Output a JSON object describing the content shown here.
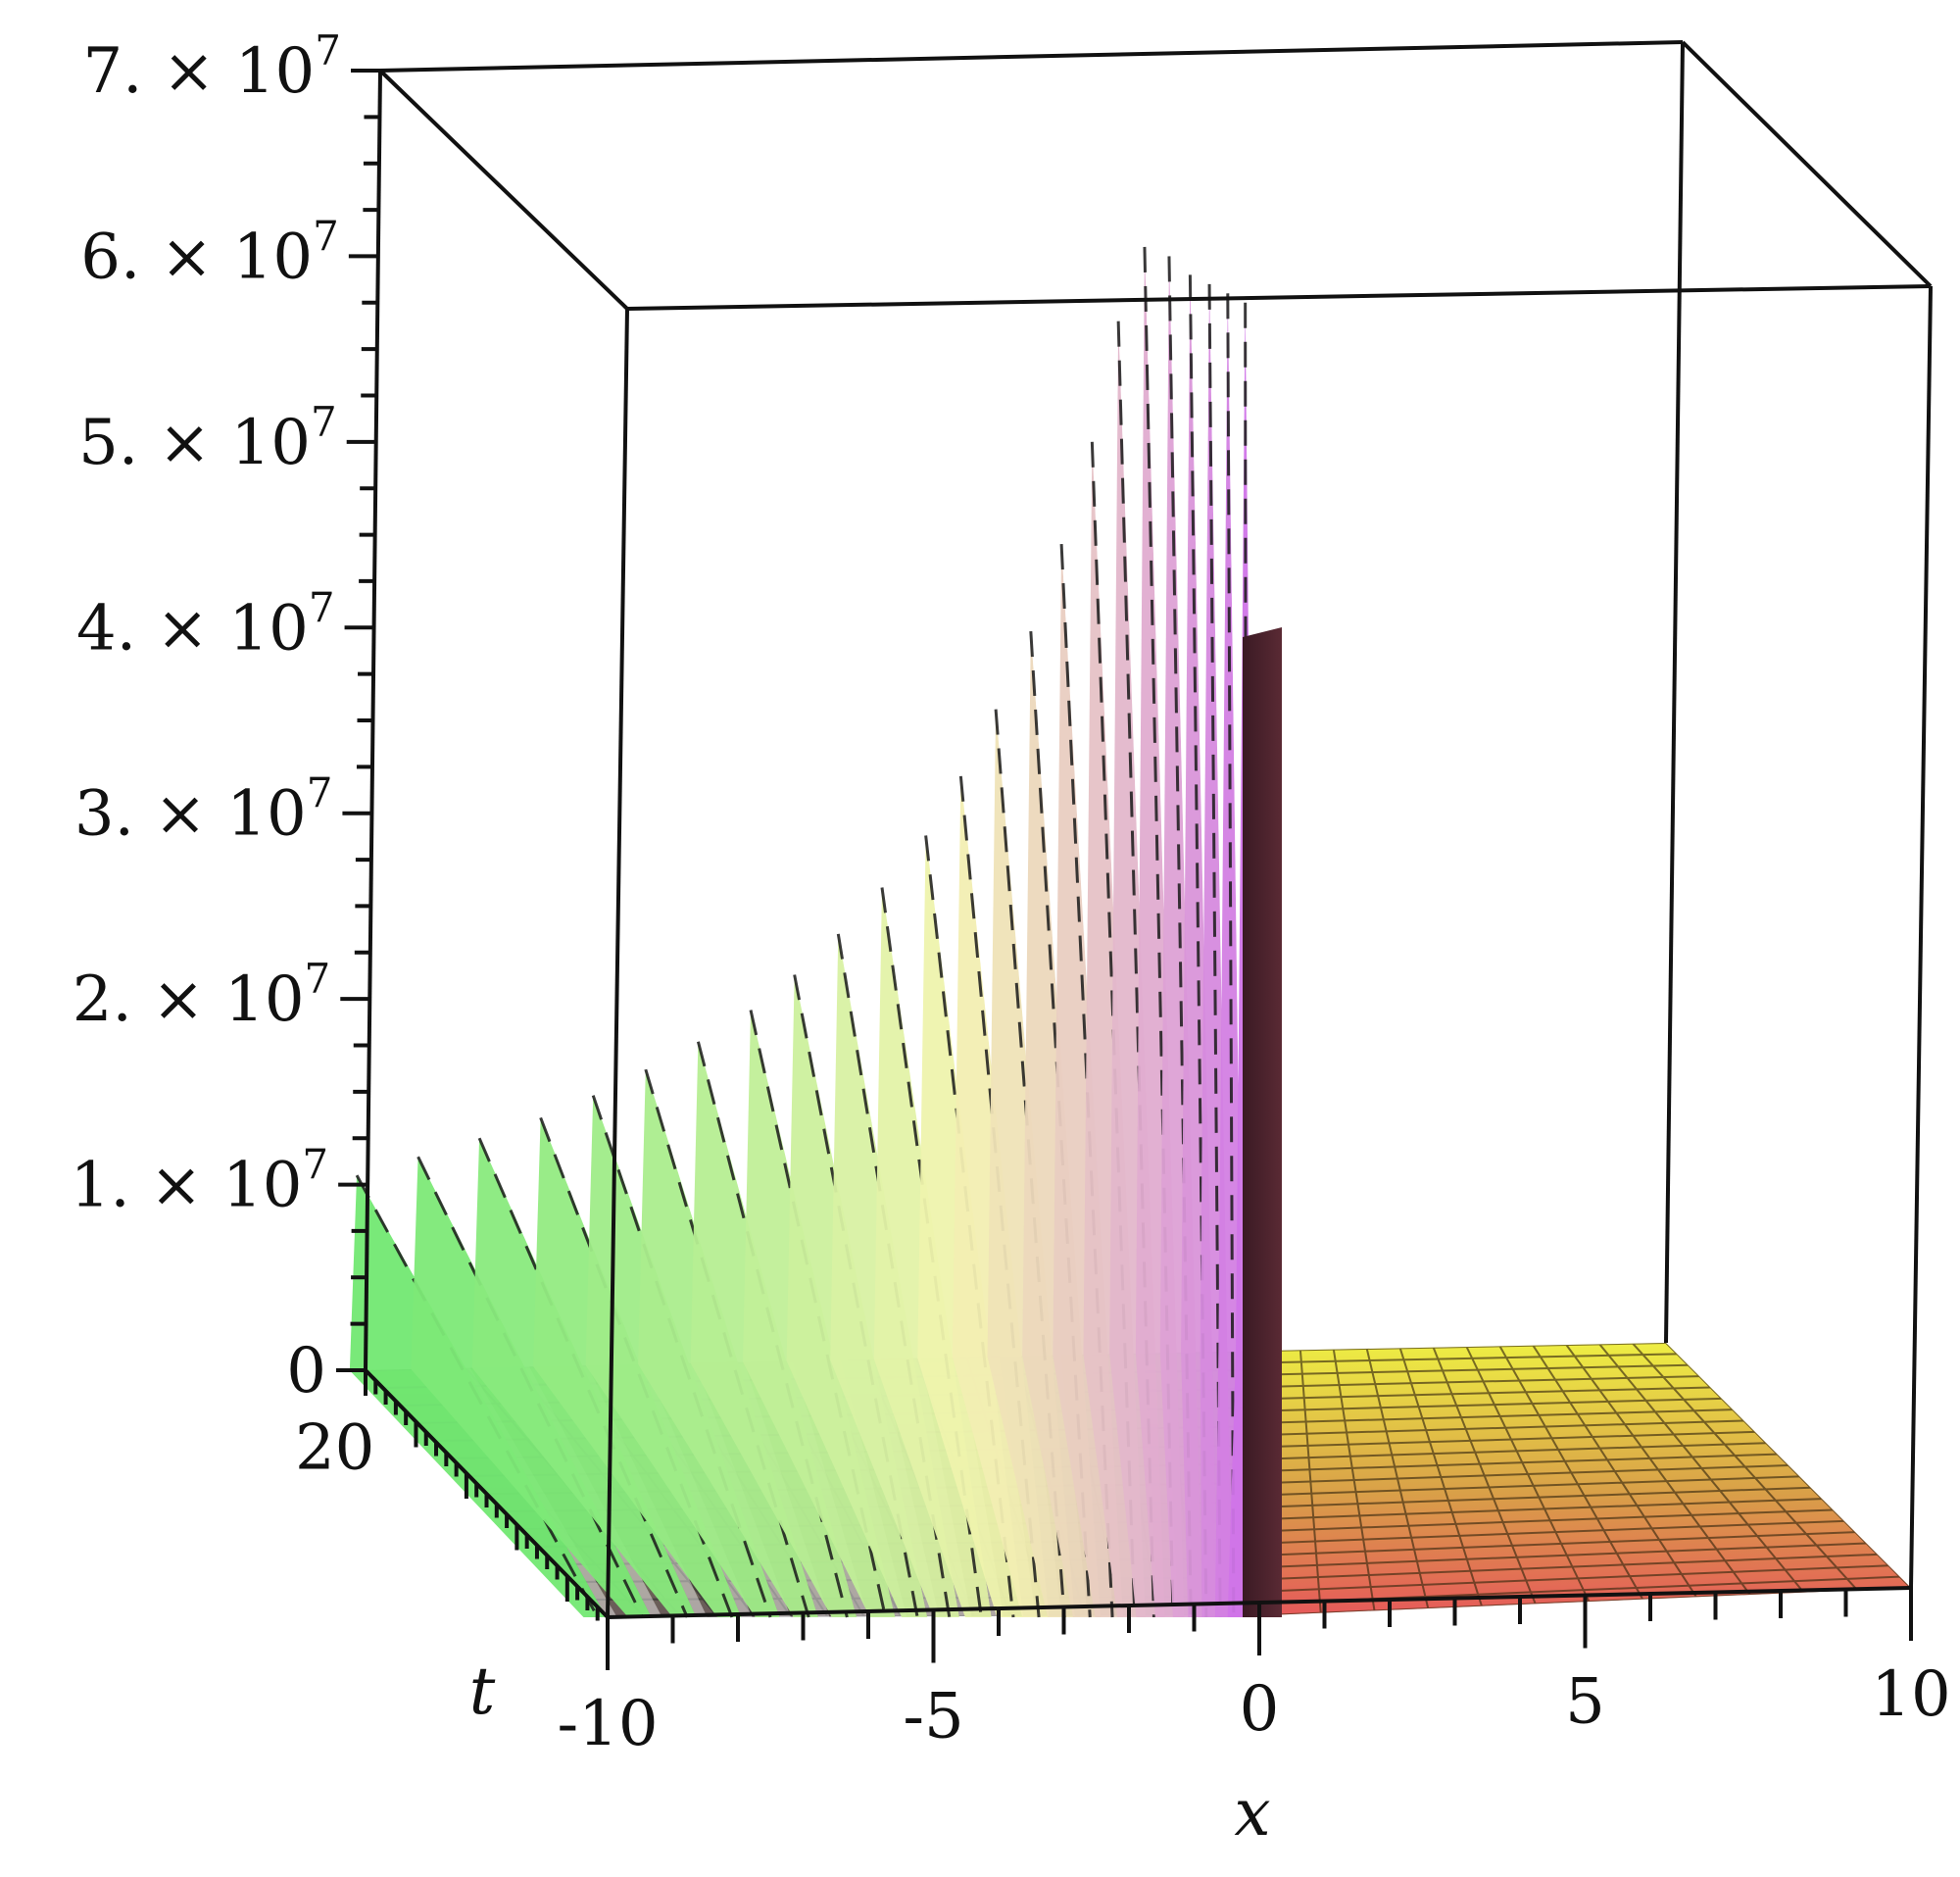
{
  "chart_data": {
    "type": "surface3d",
    "title": "",
    "xlabel": "x",
    "ylabel": "t",
    "zlabel": "",
    "x_ticks": [
      {
        "value": -10,
        "label": "-10"
      },
      {
        "value": -5,
        "label": "-5"
      },
      {
        "value": 0,
        "label": "0"
      },
      {
        "value": 5,
        "label": "5"
      },
      {
        "value": 10,
        "label": "10"
      }
    ],
    "t_ticks": [
      {
        "value": 20,
        "label": "20"
      }
    ],
    "z_ticks": [
      {
        "value": 0,
        "label": "0",
        "mantissa": "0",
        "exponent": ""
      },
      {
        "value": 10000000,
        "label": "1. × 10^7",
        "mantissa": "1. × 10",
        "exponent": "7"
      },
      {
        "value": 20000000,
        "label": "2. × 10^7",
        "mantissa": "2. × 10",
        "exponent": "7"
      },
      {
        "value": 30000000,
        "label": "3. × 10^7",
        "mantissa": "3. × 10",
        "exponent": "7"
      },
      {
        "value": 40000000,
        "label": "4. × 10^7",
        "mantissa": "4. × 10",
        "exponent": "7"
      },
      {
        "value": 50000000,
        "label": "5. × 10^7",
        "mantissa": "5. × 10",
        "exponent": "7"
      },
      {
        "value": 60000000,
        "label": "6. × 10^7",
        "mantissa": "6. × 10",
        "exponent": "7"
      },
      {
        "value": 70000000,
        "label": "7. × 10^7",
        "mantissa": "7. × 10",
        "exponent": "7"
      }
    ],
    "x_range": [
      -10,
      10
    ],
    "t_range": [
      0,
      25
    ],
    "z_range": [
      0,
      70000000
    ],
    "spike_peaks": [
      {
        "x": -10.1,
        "z": 10500000
      },
      {
        "x": -9.4,
        "z": 11500000
      },
      {
        "x": -8.7,
        "z": 12500000
      },
      {
        "x": -8.0,
        "z": 13600000
      },
      {
        "x": -7.4,
        "z": 14800000
      },
      {
        "x": -6.8,
        "z": 16200000
      },
      {
        "x": -6.2,
        "z": 17700000
      },
      {
        "x": -5.6,
        "z": 19400000
      },
      {
        "x": -5.1,
        "z": 21300000
      },
      {
        "x": -4.6,
        "z": 23500000
      },
      {
        "x": -4.1,
        "z": 26000000
      },
      {
        "x": -3.6,
        "z": 28800000
      },
      {
        "x": -3.2,
        "z": 32000000
      },
      {
        "x": -2.8,
        "z": 35600000
      },
      {
        "x": -2.4,
        "z": 39800000
      },
      {
        "x": -2.05,
        "z": 44500000
      },
      {
        "x": -1.7,
        "z": 50000000
      },
      {
        "x": -1.4,
        "z": 56500000
      },
      {
        "x": -1.1,
        "z": 60500000
      },
      {
        "x": -0.82,
        "z": 60000000
      },
      {
        "x": -0.58,
        "z": 59000000
      },
      {
        "x": -0.36,
        "z": 58500000
      },
      {
        "x": -0.15,
        "z": 58000000
      },
      {
        "x": 0.05,
        "z": 57500000
      }
    ],
    "flat_region": {
      "x_from": 0.3,
      "x_to": 10,
      "z": 0
    },
    "grid": true,
    "colors": {
      "low_x": "#72e872",
      "mid_x": "#f4f4b0",
      "high_x": "#d074e8",
      "right_floor_top": "#ecec40",
      "right_floor_bottom": "#e86060",
      "box": "#111111"
    }
  }
}
